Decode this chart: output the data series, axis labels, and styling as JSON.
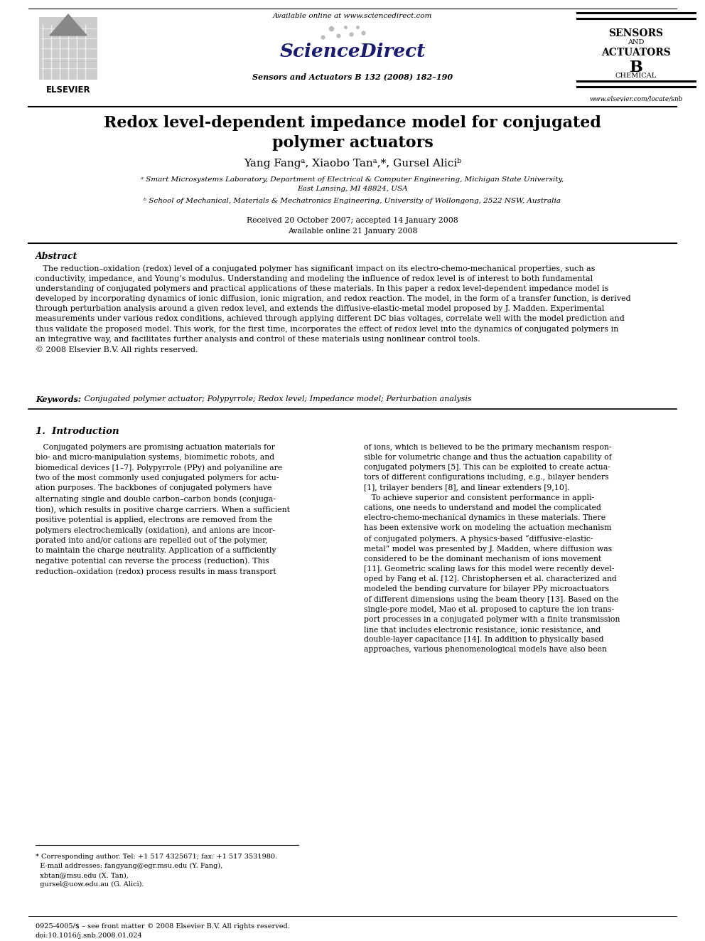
{
  "bg_color": "#ffffff",
  "title_line1": "Redox level-dependent impedance model for conjugated",
  "title_line2": "polymer actuators",
  "authors_text": "Yang Fangᵃ, Xiaobo Tanᵃ,*, Gursel Aliciᵇ",
  "affil_a": "ᵃ Smart Microsystems Laboratory, Department of Electrical & Computer Engineering, Michigan State University,\nEast Lansing, MI 48824, USA",
  "affil_b": "ᵇ School of Mechanical, Materials & Mechatronics Engineering, University of Wollongong, 2522 NSW, Australia",
  "received": "Received 20 October 2007; accepted 14 January 2008",
  "online": "Available online 21 January 2008",
  "journal": "Sensors and Actuators B 132 (2008) 182–190",
  "available_online_text": "Available online at www.sciencedirect.com",
  "abstract_title": "Abstract",
  "abstract_body": "   The reduction–oxidation (redox) level of a conjugated polymer has significant impact on its electro-chemo-mechanical properties, such as\nconductivity, impedance, and Young’s modulus. Understanding and modeling the influence of redox level is of interest to both fundamental\nunderstanding of conjugated polymers and practical applications of these materials. In this paper a redox level-dependent impedance model is\ndeveloped by incorporating dynamics of ionic diffusion, ionic migration, and redox reaction. The model, in the form of a transfer function, is derived\nthrough perturbation analysis around a given redox level, and extends the diffusive-elastic-metal model proposed by J. Madden. Experimental\nmeasurements under various redox conditions, achieved through applying different DC bias voltages, correlate well with the model prediction and\nthus validate the proposed model. This work, for the first time, incorporates the effect of redox level into the dynamics of conjugated polymers in\nan integrative way, and facilitates further analysis and control of these materials using nonlinear control tools.\n© 2008 Elsevier B.V. All rights reserved.",
  "keywords_label": "Keywords: ",
  "keywords": " Conjugated polymer actuator; Polypyrrole; Redox level; Impedance model; Perturbation analysis",
  "section1_title": "1.  Introduction",
  "section1_col1": "   Conjugated polymers are promising actuation materials for\nbio- and micro-manipulation systems, biomimetic robots, and\nbiomedical devices [1–7]. Polypyrrole (PPy) and polyaniline are\ntwo of the most commonly used conjugated polymers for actu-\nation purposes. The backbones of conjugated polymers have\nalternating single and double carbon–carbon bonds (conjuga-\ntion), which results in positive charge carriers. When a sufficient\npositive potential is applied, electrons are removed from the\npolymers electrochemically (oxidation), and anions are incor-\nporated into and/or cations are repelled out of the polymer,\nto maintain the charge neutrality. Application of a sufficiently\nnegative potential can reverse the process (reduction). This\nreduction–oxidation (redox) process results in mass transport",
  "section1_col2": "of ions, which is believed to be the primary mechanism respon-\nsible for volumetric change and thus the actuation capability of\nconjugated polymers [5]. This can be exploited to create actua-\ntors of different configurations including, e.g., bilayer benders\n[1], trilayer benders [8], and linear extenders [9,10].\n   To achieve superior and consistent performance in appli-\ncations, one needs to understand and model the complicated\nelectro-chemo-mechanical dynamics in these materials. There\nhas been extensive work on modeling the actuation mechanism\nof conjugated polymers. A physics-based “diffusive-elastic-\nmetal” model was presented by J. Madden, where diffusion was\nconsidered to be the dominant mechanism of ions movement\n[11]. Geometric scaling laws for this model were recently devel-\noped by Fang et al. [12]. Christophersen et al. characterized and\nmodeled the bending curvature for bilayer PPy microactuators\nof different dimensions using the beam theory [13]. Based on the\nsingle-pore model, Mao et al. proposed to capture the ion trans-\nport processes in a conjugated polymer with a finite transmission\nline that includes electronic resistance, ionic resistance, and\ndouble-layer capacitance [14]. In addition to physically based\napproaches, various phenomenological models have also been",
  "footnote_line1": "* Corresponding author. Tel: +1 517 4325671; fax: +1 517 3531980.",
  "footnote_line2": "  E-mail addresses: fangyang@egr.msu.edu (Y. Fang),",
  "footnote_line3": "  xbtan@msu.edu (X. Tan),",
  "footnote_line4": "  gursel@uow.edu.au (G. Alici).",
  "footer_left_line1": "0925-4005/$ – see front matter © 2008 Elsevier B.V. All rights reserved.",
  "footer_left_line2": "doi:10.1016/j.snb.2008.01.024",
  "elsevier_text": "ELSEVIER",
  "sciencedirect_text": "ScienceDirect",
  "website": "www.elsevier.com/locate/snb",
  "sensors_line1": "SENSORS",
  "sensors_line2": "AND",
  "sensors_line3": "ACTUATORS",
  "sensors_line4": "B",
  "sensors_line5": "CHEMICAL"
}
